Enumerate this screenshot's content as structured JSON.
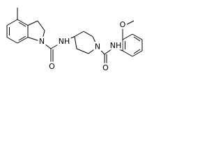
{
  "atoms": [
    {
      "label": "N"
    },
    {
      "label": "O"
    },
    {
      "label": "NH"
    },
    {
      "label": "N"
    },
    {
      "label": "NH"
    },
    {
      "label": "O"
    },
    {
      "label": "O"
    }
  ]
}
